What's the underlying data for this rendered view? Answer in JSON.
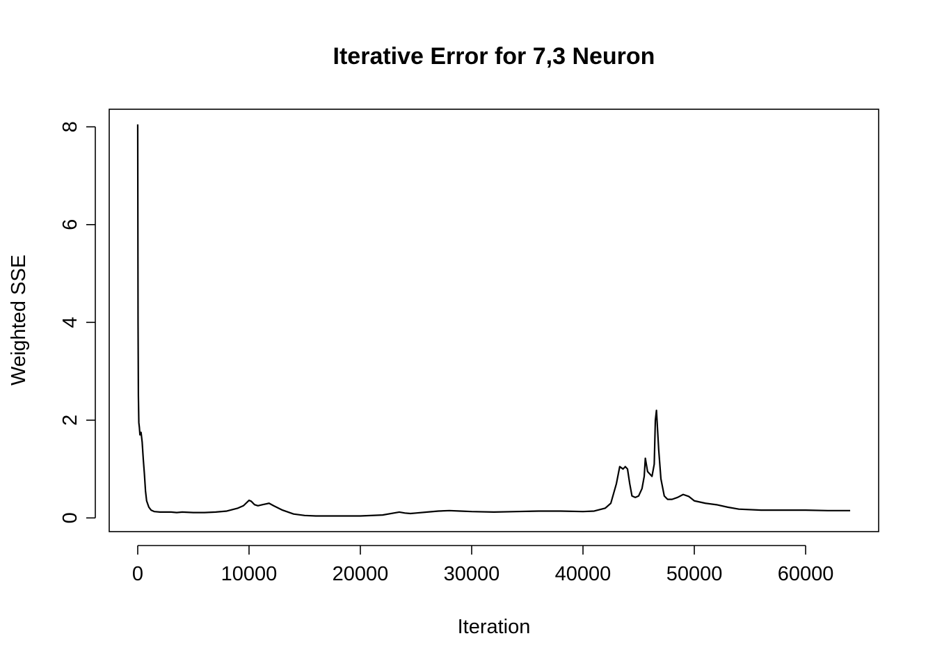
{
  "chart_data": {
    "type": "line",
    "title": "Iterative Error for 7,3 Neuron",
    "xlabel": "Iteration",
    "ylabel": "Weighted SSE",
    "xlim": [
      -2560,
      66560
    ],
    "ylim": [
      -0.28,
      8.36
    ],
    "xticks": [
      0,
      10000,
      20000,
      30000,
      40000,
      50000,
      60000
    ],
    "yticks": [
      0,
      2,
      4,
      6,
      8
    ],
    "grid": false,
    "legend": "none",
    "line_color": "#000000",
    "series": [
      {
        "x": [
          0,
          30,
          60,
          100,
          150,
          200,
          300,
          400,
          500,
          600,
          700,
          800,
          1000,
          1200,
          1500,
          2000,
          2500,
          3000,
          3500,
          4000,
          5000,
          6000,
          7000,
          8000,
          9000,
          9500,
          10000,
          10200,
          10500,
          10800,
          11200,
          11800,
          12200,
          13000,
          14000,
          15000,
          16000,
          18000,
          20000,
          22000,
          23000,
          23500,
          24000,
          24500,
          25000,
          26000,
          27000,
          28000,
          29000,
          30000,
          32000,
          34000,
          36000,
          38000,
          40000,
          41000,
          42000,
          42500,
          43000,
          43300,
          43600,
          43800,
          44000,
          44200,
          44400,
          44700,
          45000,
          45300,
          45500,
          45600,
          45800,
          46000,
          46200,
          46400,
          46500,
          46600,
          46700,
          46800,
          47000,
          47300,
          47600,
          48000,
          48500,
          49000,
          49500,
          50000,
          51000,
          52000,
          53000,
          54000,
          56000,
          58000,
          60000,
          62000,
          64000
        ],
        "values": [
          8.05,
          4.0,
          2.5,
          1.95,
          1.85,
          1.7,
          1.75,
          1.55,
          1.2,
          0.9,
          0.55,
          0.35,
          0.22,
          0.16,
          0.13,
          0.12,
          0.12,
          0.12,
          0.11,
          0.12,
          0.11,
          0.11,
          0.12,
          0.14,
          0.2,
          0.25,
          0.36,
          0.34,
          0.27,
          0.25,
          0.27,
          0.3,
          0.25,
          0.16,
          0.08,
          0.05,
          0.04,
          0.04,
          0.04,
          0.06,
          0.1,
          0.12,
          0.1,
          0.09,
          0.1,
          0.12,
          0.14,
          0.15,
          0.14,
          0.13,
          0.12,
          0.13,
          0.14,
          0.14,
          0.13,
          0.14,
          0.2,
          0.3,
          0.7,
          1.05,
          1.0,
          1.05,
          1.0,
          0.7,
          0.45,
          0.42,
          0.45,
          0.6,
          0.85,
          1.22,
          0.95,
          0.9,
          0.85,
          1.1,
          2.0,
          2.2,
          1.8,
          1.4,
          0.8,
          0.45,
          0.38,
          0.38,
          0.42,
          0.48,
          0.44,
          0.35,
          0.3,
          0.27,
          0.22,
          0.18,
          0.16,
          0.16,
          0.16,
          0.15,
          0.15
        ]
      }
    ]
  }
}
